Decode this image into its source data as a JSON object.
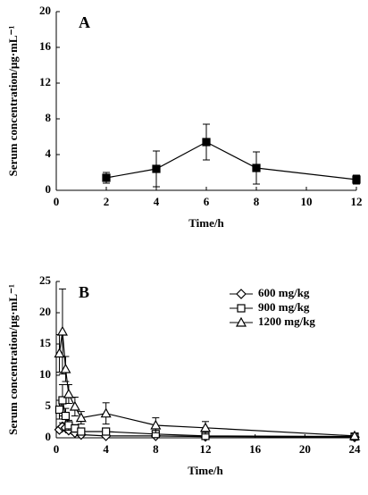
{
  "chart_data": [
    {
      "type": "line",
      "label": "A",
      "xlabel": "Time/h",
      "ylabel": "Serum concentration/μg·mL⁻¹",
      "xlim": [
        0,
        12
      ],
      "xticks": [
        0,
        2,
        4,
        6,
        8,
        10,
        12
      ],
      "ylim": [
        0,
        20
      ],
      "yticks": [
        0,
        4,
        8,
        12,
        16,
        20
      ],
      "x": [
        2,
        4,
        6,
        8,
        12
      ],
      "series": [
        {
          "color": "#000000",
          "marker": "square",
          "marker_fill": "#000000",
          "values": [
            1.4,
            2.4,
            5.4,
            2.5,
            1.2
          ],
          "errors": [
            0.6,
            2.0,
            2.0,
            1.8,
            0.5
          ]
        }
      ]
    },
    {
      "type": "line",
      "label": "B",
      "xlabel": "Time/h",
      "ylabel": "Serum concentration/μg·mL⁻¹",
      "xlim": [
        0,
        24
      ],
      "xticks": [
        0,
        4,
        8,
        12,
        16,
        20,
        24
      ],
      "ylim": [
        0,
        25
      ],
      "yticks": [
        0,
        5,
        10,
        15,
        20,
        25
      ],
      "legend": "upper right",
      "x": [
        0.25,
        0.5,
        0.75,
        1,
        1.5,
        2,
        4,
        8,
        12,
        24
      ],
      "series": [
        {
          "name": "600 mg/kg",
          "color": "#000000",
          "marker": "diamond",
          "marker_fill": "#ffffff",
          "values": [
            1.3,
            1.8,
            1.6,
            1.2,
            0.8,
            0.5,
            0.3,
            0.3,
            0.2,
            0.1
          ],
          "errors": [
            0.4,
            0.6,
            0.5,
            0.4,
            0.3,
            0.2,
            0.1,
            0.1,
            0.1,
            0.05
          ]
        },
        {
          "name": "900 mg/kg",
          "color": "#000000",
          "marker": "square",
          "marker_fill": "#ffffff",
          "values": [
            4.5,
            6.0,
            3.5,
            2.0,
            1.5,
            1.0,
            1.0,
            0.6,
            0.3,
            0.2
          ],
          "errors": [
            1.5,
            2.5,
            1.2,
            0.8,
            0.6,
            0.4,
            0.4,
            0.3,
            0.2,
            0.1
          ]
        },
        {
          "name": "1200 mg/kg",
          "color": "#000000",
          "marker": "triangle",
          "marker_fill": "#ffffff",
          "values": [
            13.5,
            17.0,
            11.0,
            7.0,
            5.0,
            3.2,
            3.9,
            2.0,
            1.6,
            0.3
          ],
          "errors": [
            3.0,
            6.8,
            2.0,
            1.5,
            1.5,
            1.0,
            1.7,
            1.2,
            1.0,
            0.3
          ]
        }
      ]
    }
  ]
}
